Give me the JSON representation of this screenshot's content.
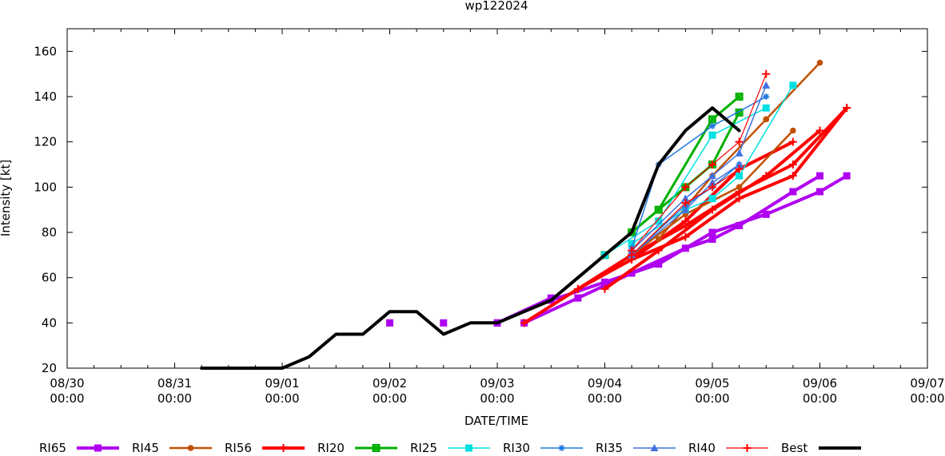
{
  "chart_data": {
    "type": "line",
    "title": "wp122024",
    "xlabel": "DATE/TIME",
    "ylabel": "Intensity [kt]",
    "x_unit": "days since 08/30 00:00",
    "xlim": [
      0,
      8
    ],
    "ylim": [
      20,
      170
    ],
    "yticks": [
      20,
      40,
      60,
      80,
      100,
      120,
      140,
      160
    ],
    "xticks": [
      {
        "x": 0,
        "line1": "08/30",
        "line2": "00:00"
      },
      {
        "x": 1,
        "line1": "08/31",
        "line2": "00:00"
      },
      {
        "x": 2,
        "line1": "09/01",
        "line2": "00:00"
      },
      {
        "x": 3,
        "line1": "09/02",
        "line2": "00:00"
      },
      {
        "x": 4,
        "line1": "09/03",
        "line2": "00:00"
      },
      {
        "x": 5,
        "line1": "09/04",
        "line2": "00:00"
      },
      {
        "x": 6,
        "line1": "09/05",
        "line2": "00:00"
      },
      {
        "x": 7,
        "line1": "09/06",
        "line2": "00:00"
      },
      {
        "x": 8,
        "line1": "09/07",
        "line2": "00:00"
      }
    ],
    "legend": [
      {
        "name": "RI65",
        "color": "#b000f0",
        "marker": "square",
        "width": 4
      },
      {
        "name": "RI45",
        "color": "#c05000",
        "marker": "circle",
        "width": 2.5
      },
      {
        "name": "RI56",
        "color": "#ff0000",
        "marker": "plus",
        "width": 4
      },
      {
        "name": "RI20",
        "color": "#00b000",
        "marker": "xbox",
        "width": 3
      },
      {
        "name": "RI25",
        "color": "#00e0e0",
        "marker": "square",
        "width": 1.5
      },
      {
        "name": "RI30",
        "color": "#1f78e0",
        "marker": "star",
        "width": 1.5
      },
      {
        "name": "RI35",
        "color": "#4070e0",
        "marker": "triangle",
        "width": 1.5
      },
      {
        "name": "RI40",
        "color": "#ff0000",
        "marker": "plus",
        "width": 1.2
      },
      {
        "name": "Best",
        "color": "#000000",
        "marker": "none",
        "width": 4
      }
    ],
    "series": [
      {
        "name": "Best",
        "x": [
          1.25,
          1.5,
          1.75,
          2.0,
          2.25,
          2.5,
          2.75,
          3.0,
          3.25,
          3.5,
          3.75,
          4.0,
          4.25,
          4.5,
          4.75,
          5.0,
          5.25,
          5.5,
          5.75,
          6.0,
          6.25
        ],
        "y": [
          20,
          20,
          20,
          20,
          25,
          35,
          35,
          45,
          45,
          35,
          40,
          40,
          45,
          50,
          60,
          70,
          80,
          110,
          125,
          135,
          125
        ]
      },
      {
        "name": "RI65",
        "x": [
          3.0
        ],
        "y": [
          40
        ]
      },
      {
        "name": "RI65",
        "x": [
          3.5
        ],
        "y": [
          40
        ]
      },
      {
        "name": "RI65",
        "x": [
          4.0
        ],
        "y": [
          40
        ]
      },
      {
        "name": "RI65",
        "x": [
          4.0,
          4.5
        ],
        "y": [
          40,
          51
        ]
      },
      {
        "name": "RI65",
        "x": [
          4.25,
          4.75,
          5.25,
          5.75,
          6.0,
          6.25,
          6.75,
          7.0
        ],
        "y": [
          40,
          51,
          62,
          73,
          77,
          83,
          98,
          105
        ]
      },
      {
        "name": "RI65",
        "x": [
          4.5,
          5.0,
          5.5,
          6.0,
          6.5,
          7.0,
          7.25
        ],
        "y": [
          50,
          58,
          66,
          80,
          88,
          98,
          105
        ]
      },
      {
        "name": "RI56",
        "x": [
          4.25,
          4.75,
          5.25,
          5.75,
          6.25,
          6.75,
          7.25
        ],
        "y": [
          40,
          55,
          70,
          83,
          98,
          110,
          135
        ]
      },
      {
        "name": "RI56",
        "x": [
          4.75,
          5.25,
          5.75,
          6.25,
          6.75,
          7.25
        ],
        "y": [
          55,
          68,
          78,
          95,
          105,
          135
        ]
      },
      {
        "name": "RI56",
        "x": [
          5.0,
          5.5,
          6.0,
          6.5,
          7.0
        ],
        "y": [
          55,
          72,
          90,
          105,
          125
        ]
      },
      {
        "name": "RI56",
        "x": [
          5.25,
          5.75,
          6.25,
          6.75
        ],
        "y": [
          68,
          85,
          108,
          120
        ]
      },
      {
        "name": "RI45",
        "x": [
          5.25,
          5.75,
          6.25,
          6.75
        ],
        "y": [
          70,
          88,
          100,
          125
        ]
      },
      {
        "name": "RI45",
        "x": [
          5.5,
          6.0,
          6.5,
          7.0
        ],
        "y": [
          77,
          105,
          130,
          155
        ]
      },
      {
        "name": "RI20",
        "x": [
          5.0,
          5.5,
          6.0,
          6.25
        ],
        "y": [
          70,
          90,
          130,
          140
        ]
      },
      {
        "name": "RI20",
        "x": [
          5.25,
          5.75,
          6.0,
          6.25
        ],
        "y": [
          80,
          100,
          110,
          133
        ]
      },
      {
        "name": "RI25",
        "x": [
          5.0,
          5.5,
          6.0,
          6.5
        ],
        "y": [
          70,
          85,
          123,
          135
        ]
      },
      {
        "name": "RI25",
        "x": [
          5.25,
          5.75,
          6.0,
          6.25,
          6.75
        ],
        "y": [
          75,
          90,
          95,
          105,
          145
        ]
      },
      {
        "name": "RI30",
        "x": [
          5.25,
          5.5,
          6.0,
          6.5
        ],
        "y": [
          73,
          110,
          127,
          140
        ]
      },
      {
        "name": "RI30",
        "x": [
          5.25,
          5.75,
          6.0,
          6.25
        ],
        "y": [
          70,
          92,
          100,
          110
        ]
      },
      {
        "name": "RI35",
        "x": [
          5.25,
          5.75,
          6.0,
          6.25,
          6.5
        ],
        "y": [
          72,
          95,
          105,
          115,
          145
        ]
      },
      {
        "name": "RI35",
        "x": [
          5.25,
          5.75,
          6.0,
          6.25
        ],
        "y": [
          70,
          90,
          102,
          110
        ]
      },
      {
        "name": "RI40",
        "x": [
          5.25,
          5.75,
          6.0,
          6.25,
          6.5
        ],
        "y": [
          72,
          100,
          110,
          120,
          150
        ]
      },
      {
        "name": "RI40",
        "x": [
          5.25,
          5.75,
          6.0,
          6.25
        ],
        "y": [
          70,
          93,
          100,
          108
        ]
      }
    ]
  }
}
